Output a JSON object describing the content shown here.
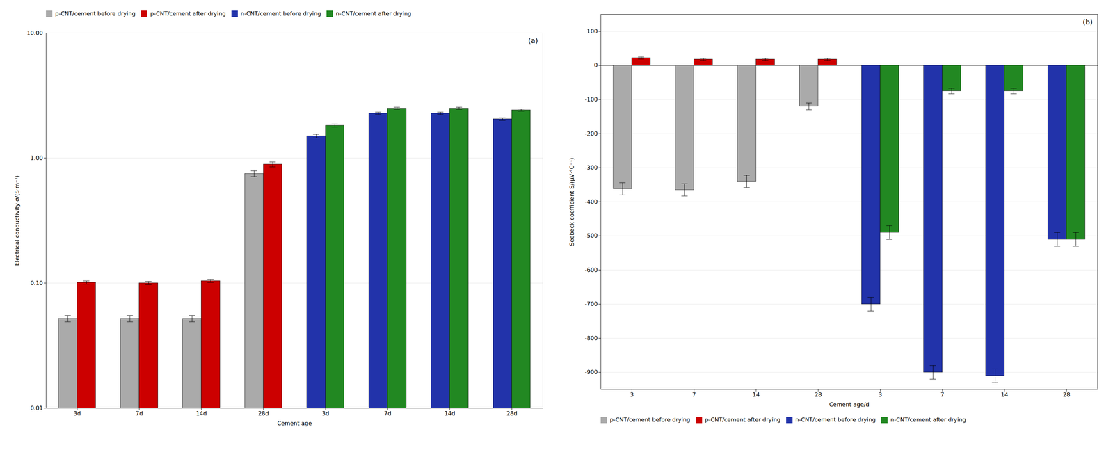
{
  "chart_data": [
    {
      "type": "bar",
      "xlabel": "Cement age",
      "ylabel": "Electrical conductivity σ/(S·m⁻¹)",
      "categories": [
        "3d",
        "7d",
        "14d",
        "28d",
        "3d",
        "7d",
        "14d",
        "28d"
      ],
      "series": [
        {
          "name": "p-CNT/cement before drying",
          "color": "#aaaaaa",
          "values": [
            0.052,
            0.052,
            0.052,
            0.75,
            null,
            null,
            null,
            null
          ],
          "errors": [
            0.003,
            0.003,
            0.003,
            0.04,
            null,
            null,
            null,
            null
          ]
        },
        {
          "name": "p-CNT/cement after drying",
          "color": "#cc0000",
          "values": [
            0.101,
            0.1,
            0.104,
            0.89,
            null,
            null,
            null,
            null
          ],
          "errors": [
            0.003,
            0.003,
            0.003,
            0.04,
            null,
            null,
            null,
            null
          ]
        },
        {
          "name": "n-CNT/cement before drying",
          "color": "#2233aa",
          "values": [
            null,
            null,
            null,
            null,
            1.5,
            2.28,
            2.28,
            2.05
          ],
          "errors": [
            null,
            null,
            null,
            null,
            0.05,
            0.05,
            0.05,
            0.05
          ]
        },
        {
          "name": "n-CNT/cement after drying",
          "color": "#228822",
          "values": [
            null,
            null,
            null,
            null,
            1.82,
            2.5,
            2.5,
            2.42
          ],
          "errors": [
            null,
            null,
            null,
            null,
            0.05,
            0.05,
            0.05,
            0.05
          ]
        }
      ],
      "log": "y",
      "ylim": [
        0.01,
        10.0
      ],
      "yticks": [
        0.01,
        {
          "value": 0.1,
          "label": "0.10"
        },
        {
          "value": 1.0,
          "label": "1.00"
        },
        {
          "value": 10.0,
          "label": "10.00"
        }
      ],
      "grid": true,
      "legend": "upper left",
      "annotations": [
        "(a)"
      ]
    },
    {
      "type": "bar",
      "xlabel": "Cement age/d",
      "ylabel": "Seebeck coefficient S/(μV·°C⁻¹)",
      "categories": [
        "3",
        "7",
        "14",
        "28",
        "3",
        "7",
        "14",
        "28"
      ],
      "series": [
        {
          "name": "p-CNT/cement before drying",
          "color": "#aaaaaa",
          "values": [
            -362,
            -365,
            -340,
            -120,
            null,
            null,
            null,
            null
          ],
          "errors": [
            18,
            18,
            18,
            10,
            null,
            null,
            null,
            null
          ]
        },
        {
          "name": "p-CNT/cement after drying",
          "color": "#cc0000",
          "values": [
            22,
            18,
            18,
            18,
            null,
            null,
            null,
            null
          ],
          "errors": [
            3,
            3,
            3,
            3,
            null,
            null,
            null,
            null
          ]
        },
        {
          "name": "n-CNT/cement before drying",
          "color": "#2233aa",
          "values": [
            null,
            null,
            null,
            null,
            -700,
            -900,
            -910,
            -510
          ],
          "errors": [
            null,
            null,
            null,
            null,
            20,
            20,
            20,
            20
          ]
        },
        {
          "name": "n-CNT/cement after drying",
          "color": "#228822",
          "values": [
            null,
            null,
            null,
            null,
            -490,
            -75,
            -75,
            -510
          ],
          "errors": [
            null,
            null,
            null,
            null,
            20,
            8,
            8,
            20
          ]
        }
      ],
      "ylim": [
        -950,
        150
      ],
      "yticks": [
        100,
        0,
        -100,
        -200,
        -300,
        -400,
        -500,
        -600,
        -700,
        -800,
        -900
      ],
      "grid": true,
      "legend": "lower left",
      "annotations": [
        "(b)"
      ]
    }
  ]
}
